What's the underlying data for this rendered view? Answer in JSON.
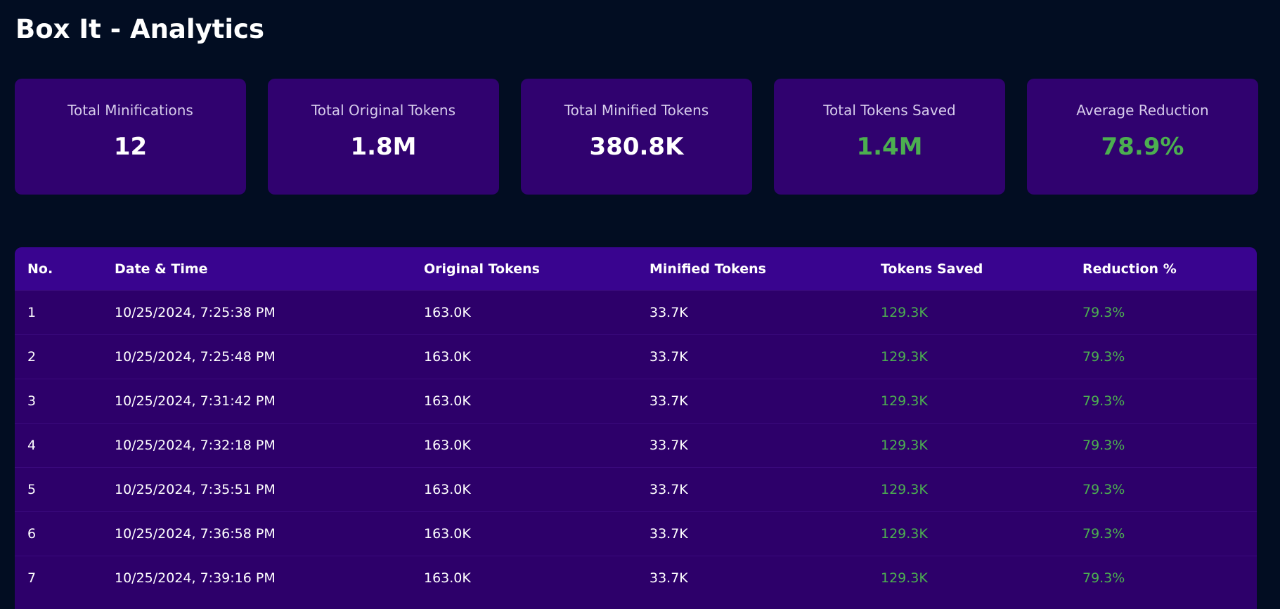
{
  "title": "Box It - Analytics",
  "colors": {
    "background": "#020d22",
    "card": "#30026f",
    "table_header": "#39048f",
    "table_body": "#2d006a",
    "positive": "#4caf50"
  },
  "stats": [
    {
      "label": "Total Minifications",
      "value": "12"
    },
    {
      "label": "Total Original Tokens",
      "value": "1.8M"
    },
    {
      "label": "Total Minified Tokens",
      "value": "380.8K"
    },
    {
      "label": "Total Tokens Saved",
      "value": "1.4M"
    },
    {
      "label": "Average Reduction",
      "value": "78.9%"
    }
  ],
  "table": {
    "headers": [
      "No.",
      "Date & Time",
      "Original Tokens",
      "Minified Tokens",
      "Tokens Saved",
      "Reduction %"
    ],
    "rows": [
      [
        "1",
        "10/25/2024, 7:25:38 PM",
        "163.0K",
        "33.7K",
        "129.3K",
        "79.3%"
      ],
      [
        "2",
        "10/25/2024, 7:25:48 PM",
        "163.0K",
        "33.7K",
        "129.3K",
        "79.3%"
      ],
      [
        "3",
        "10/25/2024, 7:31:42 PM",
        "163.0K",
        "33.7K",
        "129.3K",
        "79.3%"
      ],
      [
        "4",
        "10/25/2024, 7:32:18 PM",
        "163.0K",
        "33.7K",
        "129.3K",
        "79.3%"
      ],
      [
        "5",
        "10/25/2024, 7:35:51 PM",
        "163.0K",
        "33.7K",
        "129.3K",
        "79.3%"
      ],
      [
        "6",
        "10/25/2024, 7:36:58 PM",
        "163.0K",
        "33.7K",
        "129.3K",
        "79.3%"
      ],
      [
        "7",
        "10/25/2024, 7:39:16 PM",
        "163.0K",
        "33.7K",
        "129.3K",
        "79.3%"
      ]
    ]
  }
}
